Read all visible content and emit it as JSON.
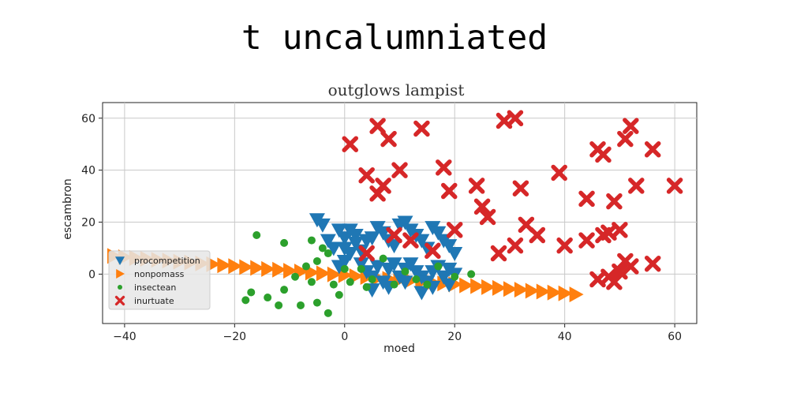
{
  "chart_data": {
    "type": "scatter",
    "title": "t uncalumniated",
    "subtitle": "outglows lampist",
    "xlabel": "moed",
    "ylabel": "escambron",
    "xlim": [
      -44,
      64
    ],
    "ylim": [
      -19,
      66
    ],
    "xticks": [
      -40,
      -20,
      0,
      20,
      40,
      60
    ],
    "yticks": [
      0,
      20,
      40,
      60
    ],
    "xtick_labels": [
      "−40",
      "−20",
      "0",
      "20",
      "40",
      "60"
    ],
    "ytick_labels": [
      "0",
      "20",
      "40",
      "60"
    ],
    "grid": true,
    "legend_position": "lower-left",
    "series": [
      {
        "name": "procompetition",
        "marker": "triangle-down",
        "color": "#1f77b4",
        "points": [
          [
            -5,
            21
          ],
          [
            -4,
            19
          ],
          [
            -1,
            17
          ],
          [
            0,
            14
          ],
          [
            1,
            17
          ],
          [
            2,
            15
          ],
          [
            -3,
            13
          ],
          [
            -2,
            10
          ],
          [
            0,
            10
          ],
          [
            1,
            8
          ],
          [
            2,
            12
          ],
          [
            3,
            9
          ],
          [
            4,
            13
          ],
          [
            5,
            14
          ],
          [
            6,
            18
          ],
          [
            7,
            16
          ],
          [
            8,
            13
          ],
          [
            9,
            11
          ],
          [
            10,
            19
          ],
          [
            11,
            20
          ],
          [
            12,
            17
          ],
          [
            13,
            15
          ],
          [
            14,
            13
          ],
          [
            15,
            10
          ],
          [
            16,
            18
          ],
          [
            17,
            16
          ],
          [
            18,
            13
          ],
          [
            19,
            11
          ],
          [
            20,
            8
          ],
          [
            3,
            4
          ],
          [
            4,
            1
          ],
          [
            5,
            -1
          ],
          [
            6,
            3
          ],
          [
            7,
            -3
          ],
          [
            8,
            2
          ],
          [
            9,
            4
          ],
          [
            10,
            -1
          ],
          [
            11,
            2
          ],
          [
            12,
            4
          ],
          [
            13,
            1
          ],
          [
            14,
            -1
          ],
          [
            15,
            -3
          ],
          [
            16,
            1
          ],
          [
            17,
            3
          ],
          [
            18,
            -1
          ],
          [
            19,
            2
          ],
          [
            20,
            0
          ],
          [
            5,
            -6
          ],
          [
            8,
            -5
          ],
          [
            14,
            -7
          ],
          [
            16,
            -5
          ],
          [
            19,
            -4
          ],
          [
            11,
            -3
          ],
          [
            0,
            5
          ],
          [
            -1,
            3
          ]
        ]
      },
      {
        "name": "nonpomass",
        "marker": "triangle-right",
        "color": "#ff7f0e",
        "points": [
          [
            -42,
            7
          ],
          [
            -40,
            6.5
          ],
          [
            -38,
            6.2
          ],
          [
            -36,
            5.9
          ],
          [
            -34,
            5.5
          ],
          [
            -32,
            5.2
          ],
          [
            -30,
            4.8
          ],
          [
            -28,
            4.5
          ],
          [
            -26,
            4.1
          ],
          [
            -24,
            3.8
          ],
          [
            -22,
            3.4
          ],
          [
            -20,
            3.1
          ],
          [
            -18,
            2.7
          ],
          [
            -16,
            2.4
          ],
          [
            -14,
            2.0
          ],
          [
            -12,
            1.7
          ],
          [
            -10,
            1.3
          ],
          [
            -8,
            1.0
          ],
          [
            -6,
            0.6
          ],
          [
            -4,
            0.3
          ],
          [
            -2,
            -0.1
          ],
          [
            0,
            -0.4
          ],
          [
            2,
            -0.8
          ],
          [
            4,
            -1.1
          ],
          [
            6,
            -1.5
          ],
          [
            8,
            -1.8
          ],
          [
            10,
            -2.2
          ],
          [
            12,
            -2.5
          ],
          [
            14,
            -2.9
          ],
          [
            16,
            -3.2
          ],
          [
            18,
            -3.6
          ],
          [
            20,
            -3.9
          ],
          [
            22,
            -4.3
          ],
          [
            24,
            -4.6
          ],
          [
            26,
            -5.0
          ],
          [
            28,
            -5.3
          ],
          [
            30,
            -5.7
          ],
          [
            32,
            -6.0
          ],
          [
            34,
            -6.4
          ],
          [
            36,
            -6.7
          ],
          [
            38,
            -7.1
          ],
          [
            40,
            -7.4
          ],
          [
            42,
            -7.8
          ]
        ]
      },
      {
        "name": "insectean",
        "marker": "circle",
        "color": "#2ca02c",
        "points": [
          [
            -16,
            15
          ],
          [
            -11,
            12
          ],
          [
            -6,
            13
          ],
          [
            -4,
            10
          ],
          [
            -3,
            8
          ],
          [
            -5,
            5
          ],
          [
            -7,
            3
          ],
          [
            -9,
            -1
          ],
          [
            -11,
            -6
          ],
          [
            -12,
            -12
          ],
          [
            -14,
            -9
          ],
          [
            -17,
            -7
          ],
          [
            -18,
            -10
          ],
          [
            -8,
            -12
          ],
          [
            -5,
            -11
          ],
          [
            -2,
            -4
          ],
          [
            -1,
            -8
          ],
          [
            1,
            -3
          ],
          [
            3,
            2
          ],
          [
            5,
            -2
          ],
          [
            7,
            6
          ],
          [
            9,
            -4
          ],
          [
            11,
            1
          ],
          [
            13,
            -2
          ],
          [
            15,
            -4
          ],
          [
            17,
            3
          ],
          [
            20,
            -1
          ],
          [
            23,
            0
          ],
          [
            -3,
            -15
          ],
          [
            4,
            -5
          ],
          [
            0,
            2
          ],
          [
            -6,
            -3
          ]
        ]
      },
      {
        "name": "inurtuate",
        "marker": "x",
        "color": "#d62728",
        "points": [
          [
            1,
            50
          ],
          [
            6,
            57
          ],
          [
            8,
            52
          ],
          [
            14,
            56
          ],
          [
            4,
            38
          ],
          [
            6,
            31
          ],
          [
            7,
            34
          ],
          [
            10,
            40
          ],
          [
            18,
            41
          ],
          [
            19,
            32
          ],
          [
            20,
            17
          ],
          [
            24,
            34
          ],
          [
            25,
            26
          ],
          [
            26,
            22
          ],
          [
            28,
            8
          ],
          [
            29,
            59
          ],
          [
            31,
            60
          ],
          [
            31,
            11
          ],
          [
            32,
            33
          ],
          [
            33,
            19
          ],
          [
            35,
            15
          ],
          [
            39,
            39
          ],
          [
            40,
            11
          ],
          [
            44,
            13
          ],
          [
            44,
            29
          ],
          [
            46,
            48
          ],
          [
            47,
            46
          ],
          [
            47,
            15
          ],
          [
            48,
            16
          ],
          [
            49,
            28
          ],
          [
            50,
            17
          ],
          [
            51,
            52
          ],
          [
            52,
            57
          ],
          [
            53,
            34
          ],
          [
            56,
            48
          ],
          [
            60,
            34
          ],
          [
            46,
            -2
          ],
          [
            48,
            -1
          ],
          [
            49,
            -3
          ],
          [
            50,
            1
          ],
          [
            51,
            5
          ],
          [
            52,
            3
          ],
          [
            56,
            4
          ],
          [
            4,
            8
          ],
          [
            9,
            15
          ],
          [
            12,
            13
          ],
          [
            16,
            9
          ]
        ]
      }
    ]
  }
}
